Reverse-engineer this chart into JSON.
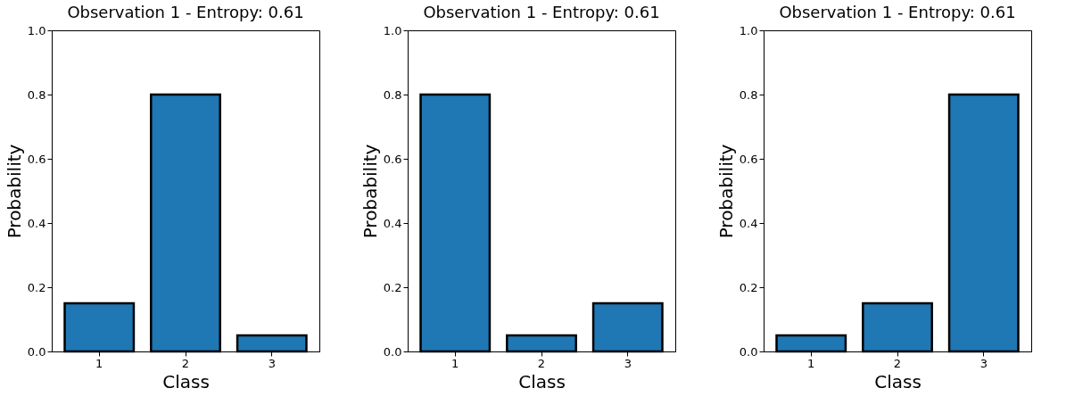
{
  "chart_data": [
    {
      "type": "bar",
      "title": "Observation 1 - Entropy: 0.61",
      "xlabel": "Class",
      "ylabel": "Probability",
      "categories": [
        "1",
        "2",
        "3"
      ],
      "values": [
        0.15,
        0.8,
        0.05
      ],
      "color": "#1f77b4",
      "ylim": [
        0,
        1
      ],
      "yticks": [
        {
          "value": 0,
          "label": "0.0"
        },
        {
          "value": 0.2,
          "label": "0.2"
        },
        {
          "value": 0.4,
          "label": "0.4"
        },
        {
          "value": 0.6,
          "label": "0.6"
        },
        {
          "value": 0.8,
          "label": "0.8"
        },
        {
          "value": 1,
          "label": "1.0"
        }
      ],
      "grid": false
    },
    {
      "type": "bar",
      "title": "Observation 1 - Entropy: 0.61",
      "xlabel": "Class",
      "ylabel": "Probability",
      "categories": [
        "1",
        "2",
        "3"
      ],
      "values": [
        0.8,
        0.05,
        0.15
      ],
      "color": "#1f77b4",
      "ylim": [
        0,
        1
      ],
      "yticks": [
        {
          "value": 0,
          "label": "0.0"
        },
        {
          "value": 0.2,
          "label": "0.2"
        },
        {
          "value": 0.4,
          "label": "0.4"
        },
        {
          "value": 0.6,
          "label": "0.6"
        },
        {
          "value": 0.8,
          "label": "0.8"
        },
        {
          "value": 1,
          "label": "1.0"
        }
      ],
      "grid": false
    },
    {
      "type": "bar",
      "title": "Observation 1 - Entropy: 0.61",
      "xlabel": "Class",
      "ylabel": "Probability",
      "categories": [
        "1",
        "2",
        "3"
      ],
      "values": [
        0.05,
        0.15,
        0.8
      ],
      "color": "#1f77b4",
      "ylim": [
        0,
        1
      ],
      "yticks": [
        {
          "value": 0,
          "label": "0.0"
        },
        {
          "value": 0.2,
          "label": "0.2"
        },
        {
          "value": 0.4,
          "label": "0.4"
        },
        {
          "value": 0.6,
          "label": "0.6"
        },
        {
          "value": 0.8,
          "label": "0.8"
        },
        {
          "value": 1,
          "label": "1.0"
        }
      ],
      "grid": false
    }
  ]
}
